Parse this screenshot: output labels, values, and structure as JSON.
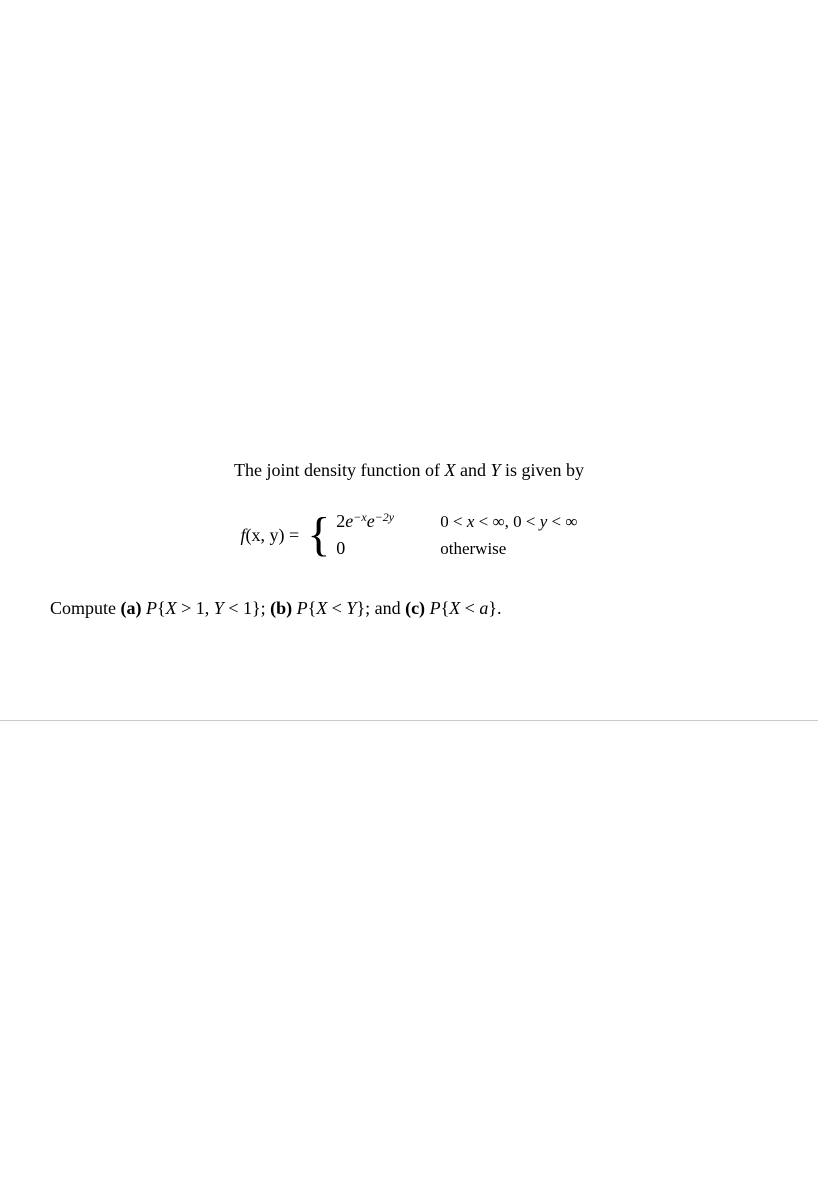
{
  "problem": {
    "intro_prefix": "The joint density function of ",
    "intro_var1": "X",
    "intro_mid": " and ",
    "intro_var2": "Y",
    "intro_suffix": " is given by",
    "lhs_f": "f",
    "lhs_args": "(x, y)",
    "lhs_eq": " = ",
    "case1_coeff": "2",
    "case1_e1": "e",
    "case1_exp1": "−x",
    "case1_e2": "e",
    "case1_exp2": "−2y",
    "case1_cond": "0 < x < ∞, 0 < y < ∞",
    "case2_expr": "0",
    "case2_cond": "otherwise",
    "compute_prefix": "Compute ",
    "part_a_label": "(a)",
    "part_a_P": "P",
    "part_a_body": "{X > 1, Y < 1}",
    "sep1": "; ",
    "part_b_label": "(b)",
    "part_b_P": "P",
    "part_b_body": "{X < Y}",
    "sep2": "; and ",
    "part_c_label": "(c)",
    "part_c_P": "P",
    "part_c_body": "{X < a}",
    "period": "."
  },
  "styles": {
    "background": "#ffffff",
    "text_color": "#000000",
    "divider_color": "#cccccc",
    "font_family": "Georgia, Times New Roman, serif",
    "body_font_size": 18,
    "sup_font_size": 12
  }
}
